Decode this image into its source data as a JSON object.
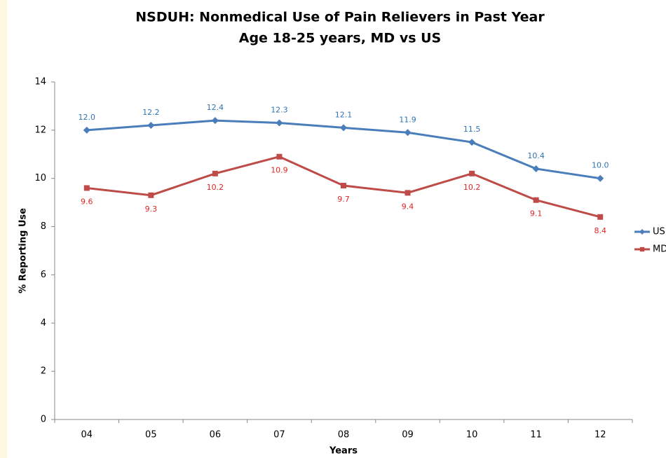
{
  "chart_data": {
    "type": "line",
    "title": "NSDUH: Nonmedical Use of Pain Relievers in Past Year",
    "subtitle": "Age 18-25 years, MD vs US",
    "x_label": "Years",
    "y_label": "% Reporting Use",
    "categories": [
      "04",
      "05",
      "06",
      "07",
      "08",
      "09",
      "10",
      "11",
      "12"
    ],
    "series": [
      {
        "name": "US",
        "color": "#4a7ebb",
        "label_color": "#2e74b5",
        "marker": "diamond",
        "label_position": "above",
        "values": [
          12.0,
          12.2,
          12.4,
          12.3,
          12.1,
          11.9,
          11.5,
          10.4,
          10.0
        ],
        "value_labels": [
          "12.0",
          "12.2",
          "12.4",
          "12.3",
          "12.1",
          "11.9",
          "11.5",
          "10.4",
          "10.0"
        ]
      },
      {
        "name": "MD",
        "color": "#be4b48",
        "label_color": "#e02424",
        "marker": "square",
        "label_position": "below",
        "values": [
          9.6,
          9.3,
          10.2,
          10.9,
          9.7,
          9.4,
          10.2,
          9.1,
          8.4
        ],
        "value_labels": [
          "9.6",
          "9.3",
          "10.2",
          "10.9",
          "9.7",
          "9.4",
          "10.2",
          "9.1",
          "8.4"
        ]
      }
    ],
    "ylim": [
      0,
      14
    ],
    "yticks": [
      0,
      2,
      4,
      6,
      8,
      10,
      12,
      14
    ],
    "grid": false,
    "legend": "right"
  }
}
